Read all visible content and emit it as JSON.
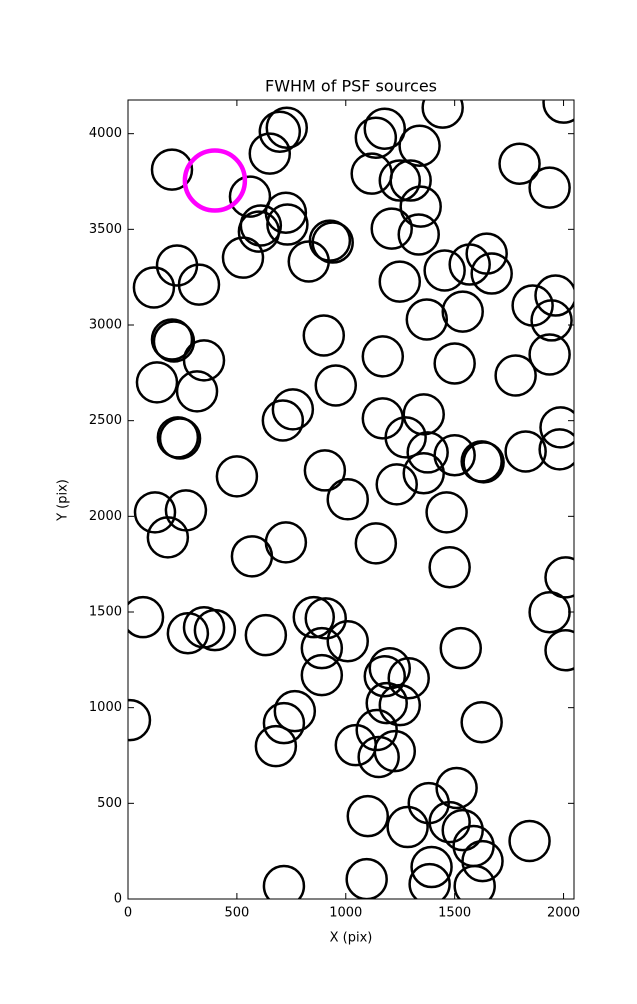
{
  "chart_data": {
    "type": "scatter",
    "title": "FWHM of PSF sources",
    "x_label": "X (pix)",
    "y_label": "Y (pix)",
    "xlim": [
      0,
      2048
    ],
    "ylim": [
      0,
      4176
    ],
    "xticks": [
      0,
      500,
      1000,
      1500,
      2000
    ],
    "yticks": [
      0,
      500,
      1000,
      1500,
      2000,
      2500,
      3000,
      3500,
      4000
    ],
    "grid": false,
    "series": [
      {
        "color": "#000000",
        "x": [
          1445,
          2000,
          697,
          729,
          651,
          1138,
          1179,
          1339,
          202,
          560,
          1798,
          1936,
          1119,
          1248,
          1298,
          1344,
          725,
          610,
          601,
          732,
          1211,
          1335,
          927,
          940,
          528,
          830,
          225,
          1647,
          1454,
          1569,
          1670,
          119,
          326,
          1248,
          1858,
          1963,
          1537,
          1372,
          1945,
          202,
          211,
          899,
          349,
          1170,
          1500,
          133,
          1780,
          1936,
          954,
          317,
          757,
          711,
          1170,
          1358,
          1986,
          229,
          239,
          1275,
          1376,
          1500,
          1624,
          1633,
          1826,
          1982,
          1358,
          904,
          500,
          1234,
          1009,
          124,
          266,
          1463,
          183,
          725,
          1138,
          569,
          1477,
          2009,
          69,
          1936,
          853,
          908,
          349,
          275,
          399,
          633,
          1009,
          1528,
          890,
          2009,
          1202,
          1179,
          1289,
          890,
          1188,
          1248,
          766,
          716,
          9,
          1624,
          1142,
          1046,
          679,
          1151,
          1225,
          1509,
          1101,
          1381,
          1477,
          1284,
          1537,
          1587,
          1844,
          1628,
          1394,
          1096,
          1385,
          1592,
          716
        ],
        "values": [
          4136,
          4162,
          4010,
          4031,
          3896,
          3979,
          4026,
          3937,
          3812,
          3671,
          3843,
          3718,
          3791,
          3755,
          3755,
          3619,
          3587,
          3520,
          3488,
          3525,
          3504,
          3473,
          3441,
          3431,
          3352,
          3332,
          3311,
          3373,
          3285,
          3316,
          3269,
          3196,
          3211,
          3227,
          3102,
          3154,
          3070,
          3029,
          3024,
          2924,
          2914,
          2945,
          2815,
          2836,
          2799,
          2700,
          2736,
          2846,
          2684,
          2653,
          2559,
          2501,
          2512,
          2533,
          2465,
          2413,
          2407,
          2413,
          2334,
          2319,
          2287,
          2282,
          2339,
          2350,
          2225,
          2240,
          2209,
          2167,
          2089,
          2021,
          2031,
          2021,
          1890,
          1864,
          1859,
          1791,
          1734,
          1681,
          1473,
          1499,
          1473,
          1467,
          1420,
          1389,
          1405,
          1379,
          1347,
          1311,
          1311,
          1300,
          1206,
          1164,
          1154,
          1170,
          1024,
          1013,
          982,
          919,
          935,
          924,
          883,
          804,
          799,
          742,
          773,
          580,
          433,
          501,
          402,
          376,
          360,
          277,
          303,
          198,
          167,
          104,
          78,
          68,
          68
        ]
      },
      {
        "color": "#ff00ff",
        "x": [
          399
        ],
        "values": [
          3755
        ]
      }
    ]
  }
}
